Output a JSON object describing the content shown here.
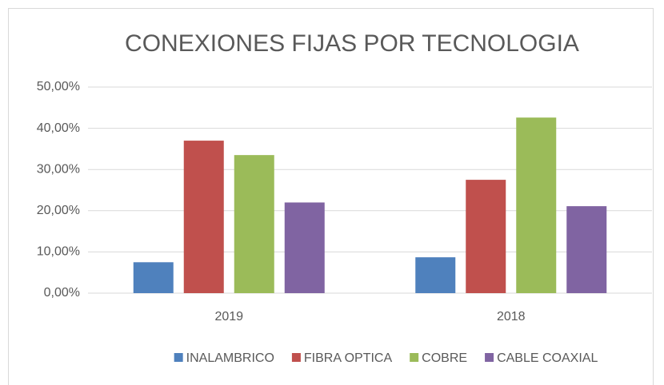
{
  "chart_data": {
    "type": "bar",
    "title": "CONEXIONES FIJAS POR TECNOLOGIA",
    "categories": [
      "2019",
      "2018"
    ],
    "series": [
      {
        "name": "INALAMBRICO",
        "color": "#4f81bd",
        "values": [
          7.5,
          8.7
        ]
      },
      {
        "name": "FIBRA OPTICA",
        "color": "#c0504d",
        "values": [
          37,
          27.5
        ]
      },
      {
        "name": "COBRE",
        "color": "#9bbb59",
        "values": [
          33.5,
          42.6
        ]
      },
      {
        "name": "CABLE COAXIAL",
        "color": "#8064a2",
        "values": [
          22,
          21.1
        ]
      }
    ],
    "ylim": [
      0,
      50
    ],
    "yticks": [
      {
        "value": 0,
        "label": "0,00%"
      },
      {
        "value": 10,
        "label": "10,00%"
      },
      {
        "value": 20,
        "label": "20,00%"
      },
      {
        "value": 30,
        "label": "30,00%"
      },
      {
        "value": 40,
        "label": "40,00%"
      },
      {
        "value": 50,
        "label": "50,00%"
      }
    ],
    "grid": true,
    "legend": "bottom"
  }
}
